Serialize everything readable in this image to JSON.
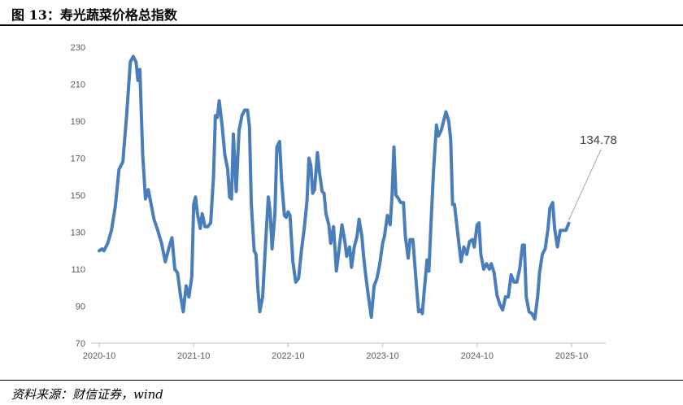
{
  "figure_title": "图 13：寿光蔬菜价格总指数",
  "source": "资料来源：财信证券，wind",
  "chart_data": {
    "type": "line",
    "title": "",
    "xlabel": "",
    "ylabel": "",
    "ylim": [
      70,
      230
    ],
    "yticks": [
      70,
      90,
      110,
      130,
      150,
      170,
      190,
      210,
      230
    ],
    "xticks": [
      "2020-10",
      "2021-10",
      "2022-10",
      "2023-10",
      "2024-10",
      "2025-10"
    ],
    "grid": false,
    "legend": "none",
    "line_color": "#4a7ebb",
    "annotation": {
      "text": "134.78",
      "value": 134.78
    },
    "series": [
      {
        "name": "",
        "points": [
          [
            0.0,
            120
          ],
          [
            0.03,
            121
          ],
          [
            0.05,
            120
          ],
          [
            0.09,
            124
          ],
          [
            0.13,
            131
          ],
          [
            0.17,
            144
          ],
          [
            0.21,
            164
          ],
          [
            0.25,
            168
          ],
          [
            0.29,
            193
          ],
          [
            0.33,
            222
          ],
          [
            0.36,
            225
          ],
          [
            0.39,
            222
          ],
          [
            0.41,
            212
          ],
          [
            0.43,
            218
          ],
          [
            0.46,
            172
          ],
          [
            0.49,
            148
          ],
          [
            0.52,
            153
          ],
          [
            0.55,
            145
          ],
          [
            0.58,
            137
          ],
          [
            0.62,
            131
          ],
          [
            0.66,
            124
          ],
          [
            0.7,
            114
          ],
          [
            0.74,
            122
          ],
          [
            0.77,
            127
          ],
          [
            0.8,
            110
          ],
          [
            0.83,
            108
          ],
          [
            0.86,
            96
          ],
          [
            0.89,
            87
          ],
          [
            0.92,
            101
          ],
          [
            0.95,
            95
          ],
          [
            0.98,
            106
          ],
          [
            1.0,
            145
          ],
          [
            1.02,
            149
          ],
          [
            1.04,
            140
          ],
          [
            1.07,
            132
          ],
          [
            1.09,
            140
          ],
          [
            1.12,
            133
          ],
          [
            1.15,
            133
          ],
          [
            1.18,
            135
          ],
          [
            1.21,
            160
          ],
          [
            1.23,
            193
          ],
          [
            1.25,
            192
          ],
          [
            1.27,
            201
          ],
          [
            1.3,
            188
          ],
          [
            1.33,
            172
          ],
          [
            1.36,
            164
          ],
          [
            1.38,
            149
          ],
          [
            1.4,
            148
          ],
          [
            1.42,
            183
          ],
          [
            1.45,
            152
          ],
          [
            1.48,
            185
          ],
          [
            1.51,
            193
          ],
          [
            1.54,
            196
          ],
          [
            1.57,
            196
          ],
          [
            1.59,
            187
          ],
          [
            1.61,
            145
          ],
          [
            1.64,
            120
          ],
          [
            1.66,
            118
          ],
          [
            1.68,
            99
          ],
          [
            1.7,
            87
          ],
          [
            1.73,
            95
          ],
          [
            1.76,
            123
          ],
          [
            1.79,
            149
          ],
          [
            1.81,
            141
          ],
          [
            1.83,
            121
          ],
          [
            1.86,
            140
          ],
          [
            1.88,
            176
          ],
          [
            1.91,
            179
          ],
          [
            1.93,
            158
          ],
          [
            1.96,
            139
          ],
          [
            1.98,
            138
          ],
          [
            2.0,
            141
          ],
          [
            2.02,
            139
          ],
          [
            2.05,
            114
          ],
          [
            2.08,
            103
          ],
          [
            2.11,
            105
          ],
          [
            2.14,
            120
          ],
          [
            2.17,
            132
          ],
          [
            2.2,
            147
          ],
          [
            2.22,
            170
          ],
          [
            2.24,
            166
          ],
          [
            2.26,
            151
          ],
          [
            2.28,
            153
          ],
          [
            2.31,
            173
          ],
          [
            2.33,
            163
          ],
          [
            2.36,
            152
          ],
          [
            2.38,
            151
          ],
          [
            2.4,
            140
          ],
          [
            2.43,
            134
          ],
          [
            2.45,
            124
          ],
          [
            2.48,
            133
          ],
          [
            2.51,
            109
          ],
          [
            2.54,
            121
          ],
          [
            2.57,
            134
          ],
          [
            2.6,
            125
          ],
          [
            2.62,
            117
          ],
          [
            2.65,
            122
          ],
          [
            2.67,
            111
          ],
          [
            2.7,
            122
          ],
          [
            2.73,
            128
          ],
          [
            2.75,
            137
          ],
          [
            2.78,
            128
          ],
          [
            2.8,
            116
          ],
          [
            2.82,
            107
          ],
          [
            2.85,
            95
          ],
          [
            2.88,
            84
          ],
          [
            2.91,
            101
          ],
          [
            2.94,
            105
          ],
          [
            2.97,
            113
          ],
          [
            3.0,
            124
          ],
          [
            3.02,
            128
          ],
          [
            3.05,
            139
          ],
          [
            3.08,
            134
          ],
          [
            3.1,
            150
          ],
          [
            3.12,
            176
          ],
          [
            3.14,
            150
          ],
          [
            3.17,
            148
          ],
          [
            3.19,
            146
          ],
          [
            3.22,
            146
          ],
          [
            3.24,
            128
          ],
          [
            3.27,
            116
          ],
          [
            3.29,
            126
          ],
          [
            3.32,
            126
          ],
          [
            3.35,
            106
          ],
          [
            3.38,
            87
          ],
          [
            3.4,
            88
          ],
          [
            3.42,
            86
          ],
          [
            3.44,
            98
          ],
          [
            3.47,
            115
          ],
          [
            3.49,
            109
          ],
          [
            3.51,
            133
          ],
          [
            3.54,
            164
          ],
          [
            3.57,
            188
          ],
          [
            3.59,
            182
          ],
          [
            3.62,
            185
          ],
          [
            3.65,
            191
          ],
          [
            3.67,
            195
          ],
          [
            3.7,
            190
          ],
          [
            3.72,
            180
          ],
          [
            3.74,
            145
          ],
          [
            3.76,
            145
          ],
          [
            3.8,
            127
          ],
          [
            3.83,
            114
          ],
          [
            3.86,
            122
          ],
          [
            3.89,
            118
          ],
          [
            3.92,
            125
          ],
          [
            3.95,
            126
          ],
          [
            3.97,
            122
          ],
          [
            4.0,
            134
          ],
          [
            4.02,
            135
          ],
          [
            4.04,
            118
          ],
          [
            4.07,
            110
          ],
          [
            4.1,
            113
          ],
          [
            4.13,
            110
          ],
          [
            4.15,
            113
          ],
          [
            4.18,
            108
          ],
          [
            4.21,
            96
          ],
          [
            4.24,
            91
          ],
          [
            4.27,
            88
          ],
          [
            4.3,
            95
          ],
          [
            4.33,
            95
          ],
          [
            4.36,
            107
          ],
          [
            4.39,
            103
          ],
          [
            4.42,
            103
          ],
          [
            4.45,
            110
          ],
          [
            4.48,
            123
          ],
          [
            4.5,
            123
          ],
          [
            4.52,
            95
          ],
          [
            4.55,
            87
          ],
          [
            4.58,
            86
          ],
          [
            4.61,
            83
          ],
          [
            4.64,
            95
          ],
          [
            4.66,
            108
          ],
          [
            4.69,
            118
          ],
          [
            4.72,
            121
          ],
          [
            4.75,
            132
          ],
          [
            4.77,
            143
          ],
          [
            4.8,
            146
          ],
          [
            4.82,
            132
          ],
          [
            4.85,
            122
          ],
          [
            4.88,
            131
          ],
          [
            4.91,
            131
          ],
          [
            4.94,
            131
          ],
          [
            4.97,
            134.78
          ]
        ]
      }
    ]
  }
}
